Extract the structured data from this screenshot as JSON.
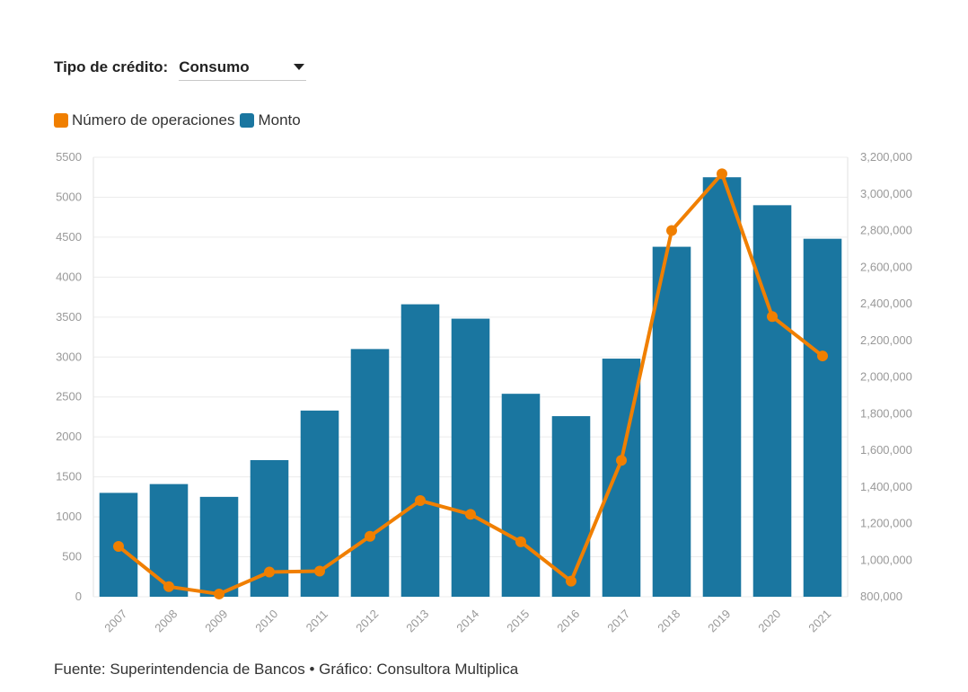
{
  "filter": {
    "label": "Tipo de crédito:",
    "selected": "Consumo"
  },
  "legend": [
    {
      "label": "Número de operaciones",
      "color": "#F07F00"
    },
    {
      "label": "Monto",
      "color": "#1A76A0"
    }
  ],
  "source": "Fuente: Superintendencia de Bancos • Gráfico: Consultora Multiplica",
  "chart_data": {
    "type": "bar+line",
    "categories": [
      "2007",
      "2008",
      "2009",
      "2010",
      "2011",
      "2012",
      "2013",
      "2014",
      "2015",
      "2016",
      "2017",
      "2018",
      "2019",
      "2020",
      "2021"
    ],
    "series": [
      {
        "name": "Monto",
        "kind": "bar",
        "axis": "left",
        "color": "#1A76A0",
        "values": [
          1300,
          1410,
          1250,
          1710,
          2330,
          3100,
          3660,
          3480,
          2540,
          2260,
          2980,
          4380,
          5250,
          4900,
          4480
        ]
      },
      {
        "name": "Número de operaciones",
        "kind": "line",
        "axis": "right",
        "color": "#F07F00",
        "values": [
          1075000,
          855000,
          815000,
          935000,
          940000,
          1130000,
          1325000,
          1250000,
          1100000,
          885000,
          1545000,
          2800000,
          3110000,
          2330000,
          2115000
        ]
      }
    ],
    "y_left": {
      "min": 0,
      "max": 5500,
      "ticks": [
        "0",
        "500",
        "1000",
        "1500",
        "2000",
        "2500",
        "3000",
        "3500",
        "4000",
        "4500",
        "5000",
        "5500"
      ]
    },
    "y_right": {
      "min": 800000,
      "max": 3200000,
      "ticks": [
        "800,000",
        "1,000,000",
        "1,200,000",
        "1,400,000",
        "1,600,000",
        "1,800,000",
        "2,000,000",
        "2,200,000",
        "2,400,000",
        "2,600,000",
        "2,800,000",
        "3,000,000",
        "3,200,000"
      ]
    },
    "grid": true
  }
}
